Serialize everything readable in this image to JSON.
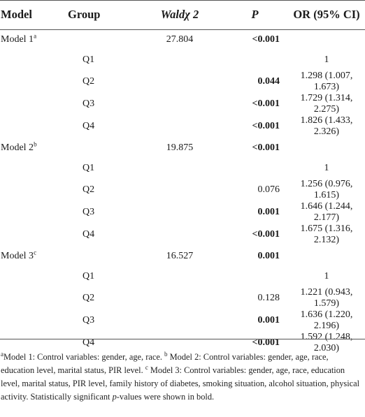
{
  "headers": {
    "model": "Model",
    "group": "Group",
    "wald": "Waldχ 2",
    "p": "P",
    "or": "OR (95% CI)"
  },
  "rows": [
    {
      "model": "Model 1",
      "sup": "a",
      "group": "",
      "wald": "27.804",
      "p": "<0.001",
      "p_bold": true,
      "or": ""
    },
    {
      "model": "",
      "sup": "",
      "group": "Q1",
      "wald": "",
      "p": "",
      "p_bold": false,
      "or": "1"
    },
    {
      "model": "",
      "sup": "",
      "group": "Q2",
      "wald": "",
      "p": "0.044",
      "p_bold": true,
      "or": "1.298 (1.007, 1.673)"
    },
    {
      "model": "",
      "sup": "",
      "group": "Q3",
      "wald": "",
      "p": "<0.001",
      "p_bold": true,
      "or": "1.729 (1.314, 2.275)"
    },
    {
      "model": "",
      "sup": "",
      "group": "Q4",
      "wald": "",
      "p": "<0.001",
      "p_bold": true,
      "or": "1.826 (1.433, 2.326)"
    },
    {
      "model": "Model 2",
      "sup": "b",
      "group": "",
      "wald": "19.875",
      "p": "<0.001",
      "p_bold": true,
      "or": ""
    },
    {
      "model": "",
      "sup": "",
      "group": "Q1",
      "wald": "",
      "p": "",
      "p_bold": false,
      "or": "1"
    },
    {
      "model": "",
      "sup": "",
      "group": "Q2",
      "wald": "",
      "p": "0.076",
      "p_bold": false,
      "or": "1.256 (0.976, 1.615)"
    },
    {
      "model": "",
      "sup": "",
      "group": "Q3",
      "wald": "",
      "p": "0.001",
      "p_bold": true,
      "or": "1.646 (1.244, 2.177)"
    },
    {
      "model": "",
      "sup": "",
      "group": "Q4",
      "wald": "",
      "p": "<0.001",
      "p_bold": true,
      "or": "1.675 (1.316, 2.132)"
    },
    {
      "model": "Model 3",
      "sup": "c",
      "group": "",
      "wald": "16.527",
      "p": "0.001",
      "p_bold": true,
      "or": ""
    },
    {
      "model": "",
      "sup": "",
      "group": "Q1",
      "wald": "",
      "p": "",
      "p_bold": false,
      "or": "1"
    },
    {
      "model": "",
      "sup": "",
      "group": "Q2",
      "wald": "",
      "p": "0.128",
      "p_bold": false,
      "or": "1.221 (0.943, 1.579)"
    },
    {
      "model": "",
      "sup": "",
      "group": "Q3",
      "wald": "",
      "p": "0.001",
      "p_bold": true,
      "or": "1.636 (1.220, 2.196)"
    },
    {
      "model": "",
      "sup": "",
      "group": "Q4",
      "wald": "",
      "p": "<0.001",
      "p_bold": true,
      "or": "1.592 (1.248, 2.030)"
    }
  ],
  "footnote": {
    "sup_a": "a",
    "note_a": "Model 1: Control variables: gender, age, race. ",
    "sup_b": "b",
    "note_b": " Model 2: Control variables: gender, age, race, education level, marital status, PIR level. ",
    "sup_c": "c",
    "note_c": " Model 3: Control variables: gender, age, race, education level, marital status, PIR level, family history of diabetes, smoking situation, alcohol situation, physical activity. Statistically significant ",
    "p_italic": "p",
    "note_end": "-values were shown in bold."
  }
}
